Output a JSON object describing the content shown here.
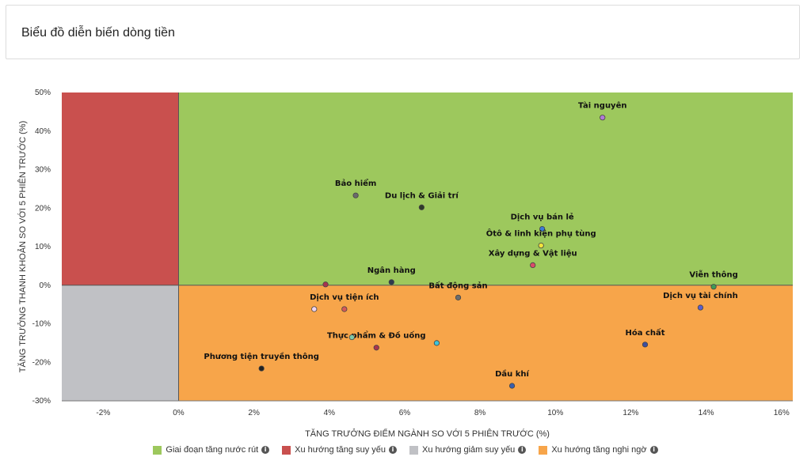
{
  "header": {
    "title": "Biểu đồ diễn biến dòng tiền"
  },
  "chart_data": {
    "type": "scatter",
    "xlabel": "TĂNG TRƯỞNG ĐIỂM NGÀNH SO VỚI 5 PHIÊN TRƯỚC (%)",
    "ylabel": "TĂNG TRƯỞNG THANH KHOẢN SO VỚI 5 PHIÊN TRƯỚC (%)",
    "xlim": [
      -3.1,
      16.3
    ],
    "ylim": [
      -30,
      50
    ],
    "x_ticks": [
      -2,
      0,
      2,
      4,
      6,
      8,
      10,
      12,
      14,
      16
    ],
    "x_tick_labels": [
      "-2%",
      "0%",
      "2%",
      "4%",
      "6%",
      "8%",
      "10%",
      "12%",
      "14%",
      "16%"
    ],
    "y_ticks": [
      -30,
      -20,
      -10,
      0,
      10,
      20,
      30,
      40,
      50
    ],
    "y_tick_labels": [
      "-30%",
      "-20%",
      "-10%",
      "0%",
      "10%",
      "20%",
      "30%",
      "40%",
      "50%"
    ],
    "quadrants": [
      {
        "name": "Giai đoạn tăng nước rút",
        "color": "#9dc85d"
      },
      {
        "name": "Xu hướng tăng suy yếu",
        "color": "#c9504e"
      },
      {
        "name": "Xu hướng giảm suy yếu",
        "color": "#c0c1c5"
      },
      {
        "name": "Xu hướng tăng nghi ngờ",
        "color": "#f7a54a"
      }
    ],
    "points": [
      {
        "label": "Tài nguyên",
        "x": 11.25,
        "y": 43.5,
        "color": "#b07ad6"
      },
      {
        "label": "Bảo hiểm",
        "x": 4.7,
        "y": 23.3,
        "color": "#6b6b6b"
      },
      {
        "label": "Du lịch & Giải trí",
        "x": 6.45,
        "y": 20.2,
        "color": "#2f3a2a"
      },
      {
        "label": "Dịch vụ bán lẻ",
        "x": 9.65,
        "y": 14.6,
        "color": "#3a7bd5"
      },
      {
        "label": "Ôtô & linh kiện phụ tùng",
        "x": 9.62,
        "y": 10.3,
        "color": "#f2e33c"
      },
      {
        "label": "Xây dựng & Vật liệu",
        "x": 9.4,
        "y": 5.2,
        "color": "#d94c6a"
      },
      {
        "label": "Ngân hàng",
        "x": 5.65,
        "y": 0.8,
        "color": "#2e3b4e"
      },
      {
        "label": "Viễn thông",
        "x": 14.2,
        "y": -0.4,
        "color": "#3f9b57"
      },
      {
        "label": "Bất động sản",
        "x": 7.42,
        "y": -3.2,
        "color": "#6d6d6d"
      },
      {
        "label": "Dịch vụ tài chính",
        "x": 13.85,
        "y": -5.8,
        "color": "#5b5fce"
      },
      {
        "label": "Dịch vụ tiện ích",
        "x": 4.4,
        "y": -6.2,
        "color": "#d45a5a"
      },
      {
        "label": "Thực phẩm & Đồ uống",
        "x": 5.25,
        "y": -16.2,
        "color": "#a8344f"
      },
      {
        "label": "Hóa chất",
        "x": 12.38,
        "y": -15.4,
        "color": "#3d4f9f"
      },
      {
        "label": "Phương tiện truyền thông",
        "x": 2.2,
        "y": -21.6,
        "color": "#222222"
      },
      {
        "label": "Dầu khí",
        "x": 8.85,
        "y": -26.1,
        "color": "#3a5fae"
      },
      {
        "label": "",
        "x": 3.9,
        "y": 0.2,
        "color": "#a8344f"
      },
      {
        "label": "",
        "x": 3.6,
        "y": -6.2,
        "color": "#f0d4f0"
      },
      {
        "label": "",
        "x": 6.85,
        "y": -15.0,
        "color": "#3fc4d8"
      },
      {
        "label": "",
        "x": 4.6,
        "y": -13.5,
        "color": "#7fc9a8"
      }
    ]
  }
}
